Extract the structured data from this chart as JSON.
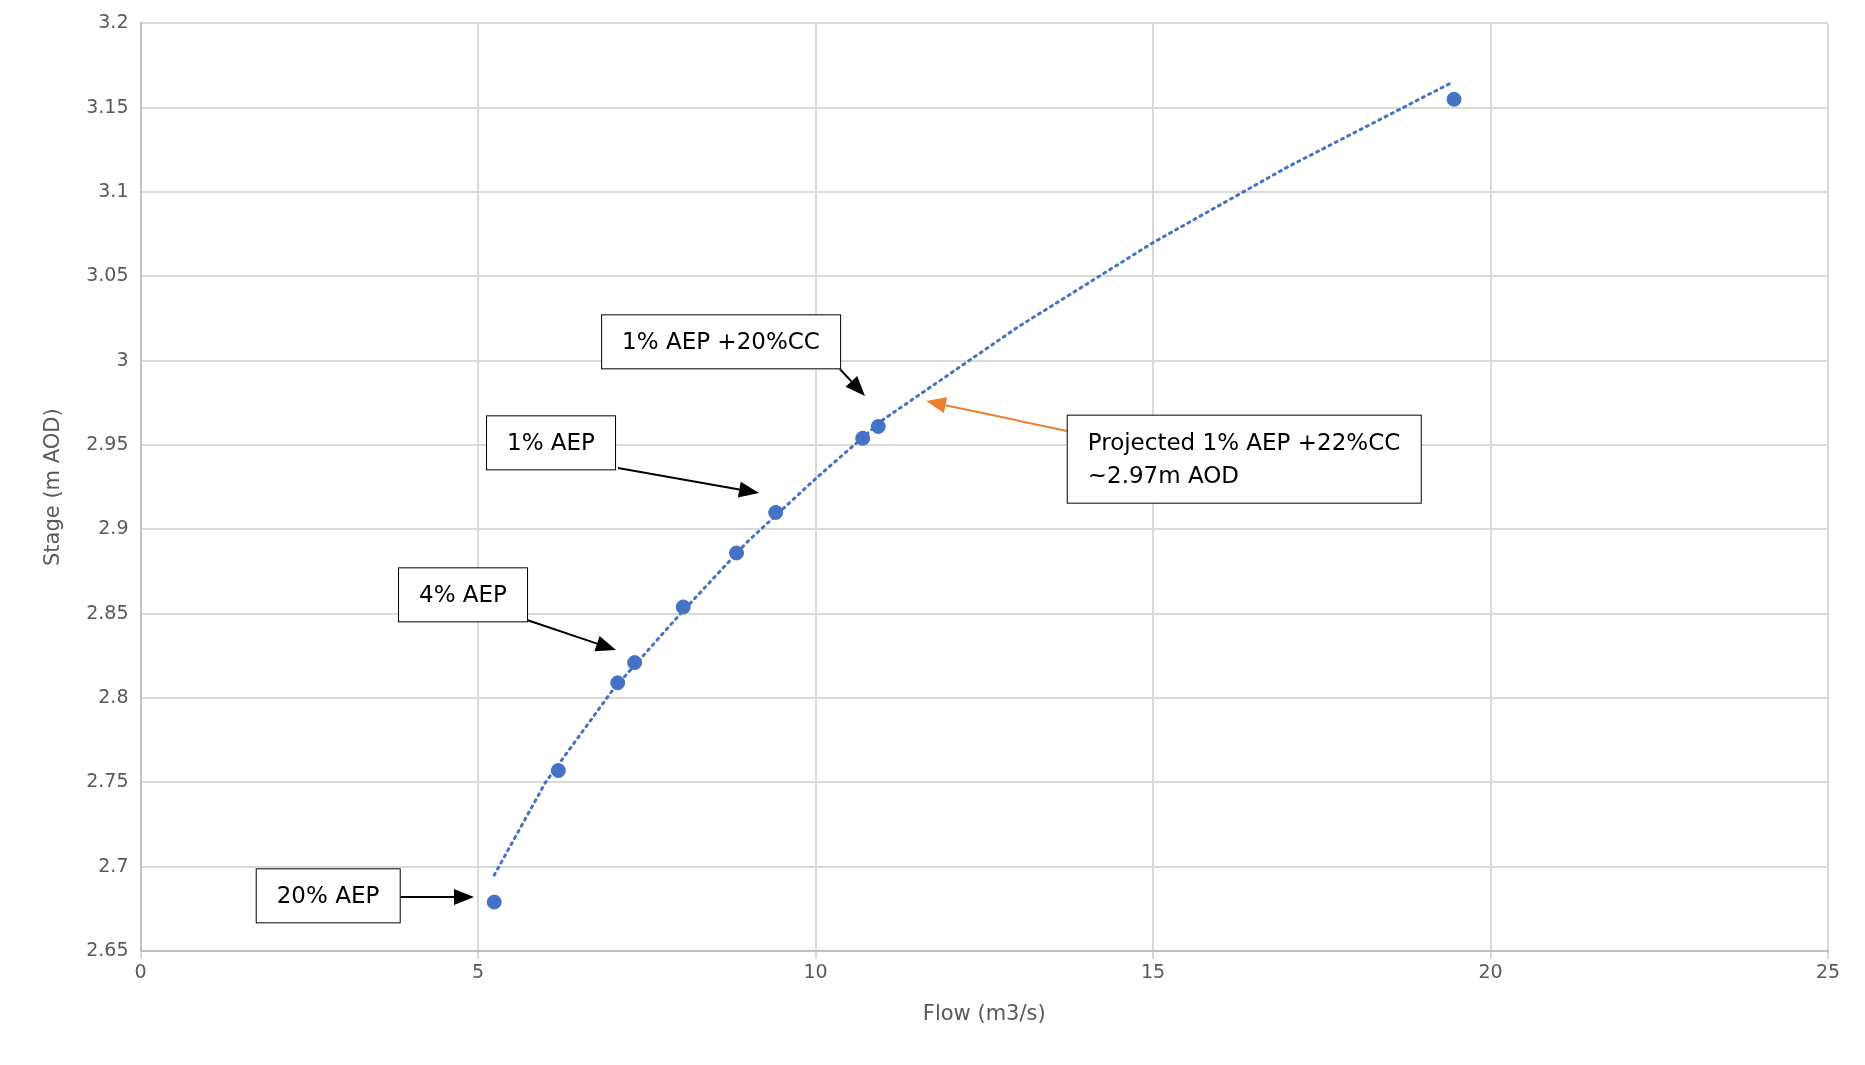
{
  "chart_data": {
    "type": "scatter",
    "xlabel": "Flow (m3/s)",
    "ylabel": "Stage (m AOD)",
    "xlim": [
      0,
      25
    ],
    "xticks": [
      0,
      5,
      10,
      15,
      20,
      25
    ],
    "ylim": [
      2.65,
      3.2
    ],
    "yticks": [
      2.65,
      2.7,
      2.75,
      2.8,
      2.85,
      2.9,
      2.95,
      3,
      3.05,
      3.1,
      3.15,
      3.2
    ],
    "grid": true,
    "legend": false,
    "series": [
      {
        "type": "scatter",
        "color": "#4472c4",
        "marker": "circle",
        "x": [
          5.24,
          6.19,
          7.07,
          7.32,
          8.04,
          8.83,
          9.41,
          10.7,
          10.93,
          19.46
        ],
        "values": [
          2.679,
          2.757,
          2.809,
          2.821,
          2.854,
          2.886,
          2.91,
          2.954,
          2.961,
          3.155
        ]
      },
      {
        "type": "line",
        "color": "#4472c4",
        "line_style": "dotted",
        "marker": "none",
        "x": [
          5.24,
          6,
          7,
          8,
          9,
          10,
          11,
          13,
          15,
          17,
          19.43
        ],
        "values": [
          2.695,
          2.75,
          2.805,
          2.85,
          2.893,
          2.93,
          2.965,
          3.02,
          3.07,
          3.115,
          3.165
        ]
      }
    ],
    "annotations": [
      "20% AEP",
      "4% AEP",
      "1% AEP",
      "1% AEP +20%CC",
      "Projected 1% AEP +22%CC\n~2.97m AOD"
    ]
  }
}
